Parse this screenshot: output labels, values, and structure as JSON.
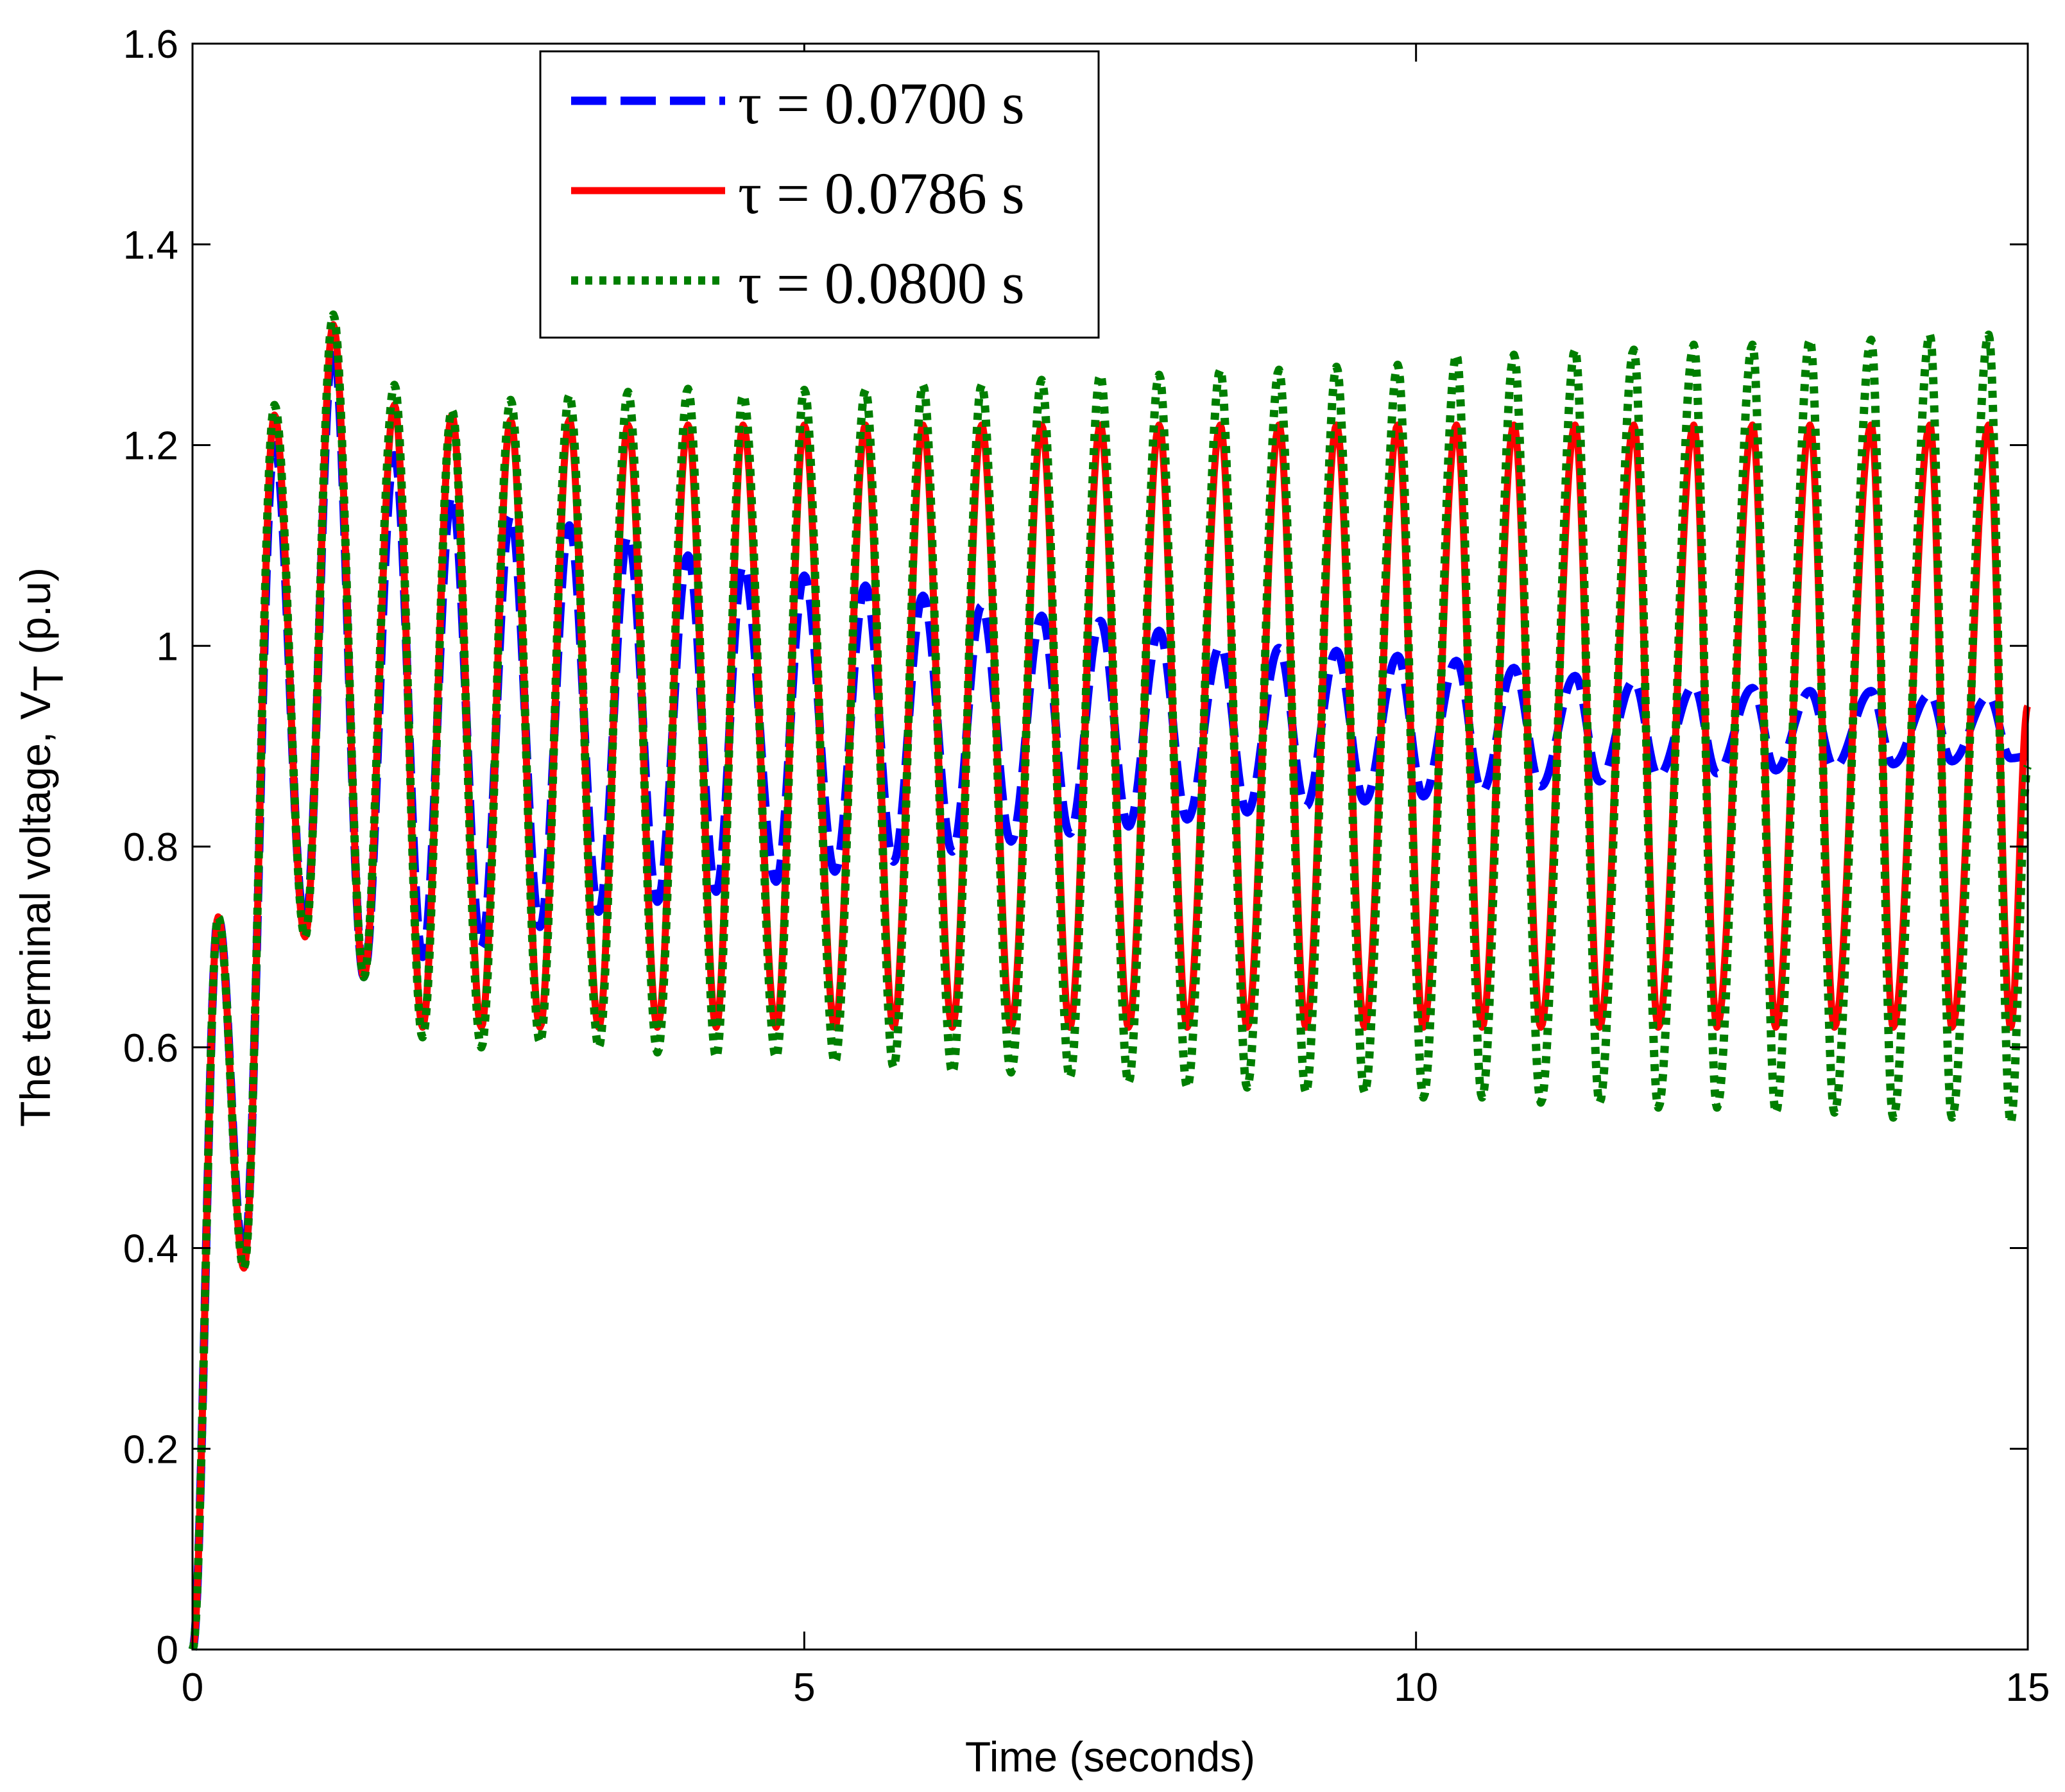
{
  "chart_data": {
    "type": "line",
    "title": "",
    "xlabel": "Time (seconds)",
    "ylabel_main": "The terminal voltage,  V",
    "ylabel_sub": "T",
    "ylabel_unit": " (p.u)",
    "xlim": [
      0,
      15
    ],
    "ylim": [
      0,
      1.6
    ],
    "xticks": [
      0,
      5,
      10,
      15
    ],
    "xtick_labels": [
      "0",
      "5",
      "10",
      "15"
    ],
    "yticks": [
      0,
      0.2,
      0.4,
      0.6,
      0.8,
      1.0,
      1.2,
      1.4,
      1.6
    ],
    "ytick_labels": [
      "0",
      "0.2",
      "0.4",
      "0.6",
      "0.8",
      "1",
      "1.2",
      "1.4",
      "1.6"
    ],
    "grid": false,
    "legend_position": "top-left",
    "series": [
      {
        "name": "τ = 0.0700 s",
        "style": "dashed",
        "color": "#0000ff",
        "peaks": [
          [
            0.21,
            0.73
          ],
          [
            0.67,
            1.2
          ],
          [
            1.15,
            1.3
          ],
          [
            1.65,
            1.19
          ],
          [
            2.12,
            1.15
          ],
          [
            2.6,
            1.13
          ],
          [
            3.08,
            1.12
          ],
          [
            3.56,
            1.11
          ],
          [
            4.05,
            1.09
          ],
          [
            4.5,
            1.08
          ],
          [
            5.0,
            1.07
          ],
          [
            5.5,
            1.06
          ],
          [
            5.97,
            1.05
          ],
          [
            6.45,
            1.04
          ],
          [
            6.94,
            1.03
          ],
          [
            7.42,
            1.025
          ],
          [
            7.9,
            1.015
          ],
          [
            8.4,
            1.0
          ],
          [
            8.88,
            0.998
          ],
          [
            9.35,
            0.995
          ],
          [
            9.85,
            0.99
          ],
          [
            10.33,
            0.985
          ],
          [
            10.8,
            0.978
          ],
          [
            11.3,
            0.97
          ],
          [
            11.78,
            0.965
          ],
          [
            12.27,
            0.96
          ],
          [
            12.75,
            0.958
          ],
          [
            13.22,
            0.955
          ],
          [
            13.72,
            0.955
          ],
          [
            14.2,
            0.952
          ],
          [
            14.68,
            0.95
          ]
        ],
        "troughs": [
          [
            0.0,
            0.0
          ],
          [
            0.42,
            0.39
          ],
          [
            0.92,
            0.72
          ],
          [
            1.4,
            0.67
          ],
          [
            1.88,
            0.69
          ],
          [
            2.36,
            0.7
          ],
          [
            2.84,
            0.72
          ],
          [
            3.32,
            0.735
          ],
          [
            3.8,
            0.745
          ],
          [
            4.28,
            0.755
          ],
          [
            4.77,
            0.765
          ],
          [
            5.25,
            0.775
          ],
          [
            5.73,
            0.785
          ],
          [
            6.21,
            0.795
          ],
          [
            6.69,
            0.805
          ],
          [
            7.17,
            0.813
          ],
          [
            7.65,
            0.82
          ],
          [
            8.13,
            0.827
          ],
          [
            8.62,
            0.834
          ],
          [
            9.1,
            0.84
          ],
          [
            9.58,
            0.845
          ],
          [
            10.06,
            0.85
          ],
          [
            10.54,
            0.855
          ],
          [
            11.02,
            0.86
          ],
          [
            11.5,
            0.865
          ],
          [
            11.98,
            0.87
          ],
          [
            12.46,
            0.873
          ],
          [
            12.94,
            0.876
          ],
          [
            13.42,
            0.879
          ],
          [
            13.9,
            0.882
          ],
          [
            14.38,
            0.885
          ],
          [
            14.86,
            0.888
          ]
        ],
        "end": [
          15.0,
          0.89
        ]
      },
      {
        "name": "τ = 0.0786 s",
        "style": "solid",
        "color": "#ff0000",
        "peaks": [
          [
            0.21,
            0.73
          ],
          [
            0.67,
            1.23
          ],
          [
            1.15,
            1.32
          ],
          [
            1.65,
            1.24
          ],
          [
            2.12,
            1.23
          ],
          [
            2.6,
            1.225
          ],
          [
            3.08,
            1.225
          ],
          [
            3.56,
            1.22
          ],
          [
            4.05,
            1.22
          ],
          [
            4.5,
            1.22
          ],
          [
            5.0,
            1.22
          ],
          [
            5.5,
            1.22
          ],
          [
            5.97,
            1.22
          ],
          [
            6.45,
            1.22
          ],
          [
            6.94,
            1.22
          ],
          [
            7.42,
            1.22
          ],
          [
            7.9,
            1.22
          ],
          [
            8.4,
            1.22
          ],
          [
            8.88,
            1.22
          ],
          [
            9.35,
            1.22
          ],
          [
            9.85,
            1.22
          ],
          [
            10.33,
            1.22
          ],
          [
            10.8,
            1.22
          ],
          [
            11.3,
            1.22
          ],
          [
            11.78,
            1.22
          ],
          [
            12.27,
            1.22
          ],
          [
            12.75,
            1.22
          ],
          [
            13.22,
            1.22
          ],
          [
            13.72,
            1.22
          ],
          [
            14.2,
            1.22
          ],
          [
            14.68,
            1.22
          ]
        ],
        "troughs": [
          [
            0.0,
            0.0
          ],
          [
            0.42,
            0.38
          ],
          [
            0.92,
            0.71
          ],
          [
            1.4,
            0.67
          ],
          [
            1.88,
            0.62
          ],
          [
            2.36,
            0.62
          ],
          [
            2.84,
            0.62
          ],
          [
            3.32,
            0.62
          ],
          [
            3.8,
            0.62
          ],
          [
            4.28,
            0.62
          ],
          [
            4.77,
            0.62
          ],
          [
            5.25,
            0.62
          ],
          [
            5.73,
            0.62
          ],
          [
            6.21,
            0.62
          ],
          [
            6.69,
            0.62
          ],
          [
            7.17,
            0.62
          ],
          [
            7.65,
            0.62
          ],
          [
            8.13,
            0.62
          ],
          [
            8.62,
            0.62
          ],
          [
            9.1,
            0.62
          ],
          [
            9.58,
            0.62
          ],
          [
            10.06,
            0.62
          ],
          [
            10.54,
            0.62
          ],
          [
            11.02,
            0.62
          ],
          [
            11.5,
            0.62
          ],
          [
            11.98,
            0.62
          ],
          [
            12.46,
            0.62
          ],
          [
            12.94,
            0.62
          ],
          [
            13.42,
            0.62
          ],
          [
            13.9,
            0.62
          ],
          [
            14.38,
            0.62
          ],
          [
            14.86,
            0.62
          ]
        ],
        "end": [
          15.0,
          0.94
        ]
      },
      {
        "name": "τ = 0.0800 s",
        "style": "dotted",
        "color": "#007f00",
        "peaks": [
          [
            0.21,
            0.73
          ],
          [
            0.67,
            1.24
          ],
          [
            1.15,
            1.33
          ],
          [
            1.65,
            1.26
          ],
          [
            2.12,
            1.235
          ],
          [
            2.6,
            1.245
          ],
          [
            3.08,
            1.25
          ],
          [
            3.56,
            1.253
          ],
          [
            4.05,
            1.256
          ],
          [
            4.5,
            1.25
          ],
          [
            5.0,
            1.255
          ],
          [
            5.5,
            1.255
          ],
          [
            5.97,
            1.26
          ],
          [
            6.45,
            1.26
          ],
          [
            6.94,
            1.265
          ],
          [
            7.42,
            1.27
          ],
          [
            7.9,
            1.27
          ],
          [
            8.4,
            1.275
          ],
          [
            8.88,
            1.275
          ],
          [
            9.35,
            1.278
          ],
          [
            9.85,
            1.28
          ],
          [
            10.33,
            1.29
          ],
          [
            10.8,
            1.29
          ],
          [
            11.3,
            1.295
          ],
          [
            11.78,
            1.295
          ],
          [
            12.27,
            1.3
          ],
          [
            12.75,
            1.3
          ],
          [
            13.22,
            1.305
          ],
          [
            13.72,
            1.305
          ],
          [
            14.2,
            1.31
          ],
          [
            14.68,
            1.31
          ]
        ],
        "troughs": [
          [
            0.0,
            0.0
          ],
          [
            0.42,
            0.38
          ],
          [
            0.92,
            0.71
          ],
          [
            1.4,
            0.67
          ],
          [
            1.88,
            0.61
          ],
          [
            2.36,
            0.6
          ],
          [
            2.84,
            0.605
          ],
          [
            3.32,
            0.6
          ],
          [
            3.8,
            0.595
          ],
          [
            4.28,
            0.59
          ],
          [
            4.77,
            0.59
          ],
          [
            5.25,
            0.585
          ],
          [
            5.73,
            0.58
          ],
          [
            6.21,
            0.575
          ],
          [
            6.69,
            0.575
          ],
          [
            7.17,
            0.57
          ],
          [
            7.65,
            0.565
          ],
          [
            8.13,
            0.56
          ],
          [
            8.62,
            0.56
          ],
          [
            9.1,
            0.555
          ],
          [
            9.58,
            0.555
          ],
          [
            10.06,
            0.55
          ],
          [
            10.54,
            0.55
          ],
          [
            11.02,
            0.545
          ],
          [
            11.5,
            0.545
          ],
          [
            11.98,
            0.54
          ],
          [
            12.46,
            0.54
          ],
          [
            12.94,
            0.535
          ],
          [
            13.42,
            0.535
          ],
          [
            13.9,
            0.53
          ],
          [
            14.38,
            0.53
          ],
          [
            14.86,
            0.525
          ]
        ],
        "end": [
          15.0,
          0.88
        ]
      }
    ]
  }
}
